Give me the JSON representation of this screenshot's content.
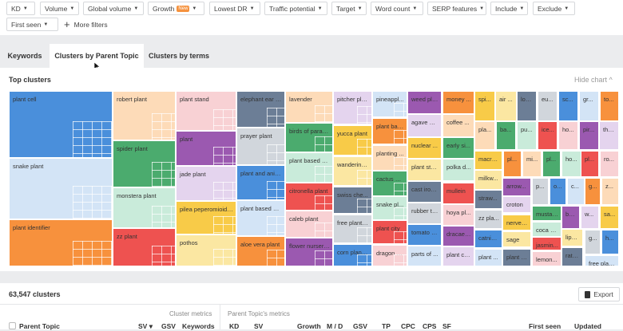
{
  "filters": {
    "row1": [
      "KD",
      "Volume",
      "Global volume",
      "Growth",
      "Lowest DR",
      "Traffic potential",
      "Target",
      "Word count",
      "SERP features",
      "Include",
      "Exclude"
    ],
    "growth_badge": "New",
    "row2": [
      "First seen"
    ],
    "more_filters": "More filters"
  },
  "tabs": [
    {
      "label": "Keywords",
      "active": false
    },
    {
      "label": "Clusters by Parent Topic",
      "active": true
    },
    {
      "label": "Clusters by terms",
      "active": false
    }
  ],
  "top_clusters": {
    "title": "Top clusters",
    "hide_chart": "Hide chart",
    "colors": {
      "blue": "#4a8fdb",
      "lightblue": "#d3e4f6",
      "orange": "#f7913d",
      "peach": "#fddbb8",
      "green": "#4bab6e",
      "mint": "#c9ebda",
      "red": "#ee5250",
      "pink": "#f8d1d4",
      "purple": "#9b59b0",
      "lavender": "#e4d4ee",
      "yellow": "#f8cb48",
      "lightyellow": "#fbe7a2",
      "slate": "#6c7e96",
      "gray": "#d1d6dc"
    },
    "clusters": [
      {
        "label": "plant cell",
        "color": "blue"
      },
      {
        "label": "snake plant",
        "color": "lightblue"
      },
      {
        "label": "plant identifier",
        "color": "orange"
      },
      {
        "label": "robert plant",
        "color": "peach"
      },
      {
        "label": "spider plant",
        "color": "green"
      },
      {
        "label": "monstera plant",
        "color": "mint"
      },
      {
        "label": "zz plant",
        "color": "red"
      },
      {
        "label": "plant stand",
        "color": "pink"
      },
      {
        "label": "plant",
        "color": "purple"
      },
      {
        "label": "jade plant",
        "color": "lavender"
      },
      {
        "label": "pilea peperomioides",
        "color": "yellow"
      },
      {
        "label": "pothos",
        "color": "lightyellow"
      },
      {
        "label": "elephant ear pl...",
        "color": "slate"
      },
      {
        "label": "prayer plant",
        "color": "gray"
      },
      {
        "label": "plant and anim...",
        "color": "blue"
      },
      {
        "label": "plant based diet",
        "color": "lightblue"
      },
      {
        "label": "aloe vera plant",
        "color": "orange"
      },
      {
        "label": "lavender",
        "color": "peach"
      },
      {
        "label": "birds of paradise",
        "color": "green"
      },
      {
        "label": "plant based pr...",
        "color": "mint"
      },
      {
        "label": "citronella plant",
        "color": "red"
      },
      {
        "label": "caleb plant",
        "color": "pink"
      },
      {
        "label": "flower nursery ...",
        "color": "purple"
      },
      {
        "label": "pitcher plant",
        "color": "lavender"
      },
      {
        "label": "yucca plant",
        "color": "yellow"
      },
      {
        "label": "wandering...",
        "color": "lightyellow"
      },
      {
        "label": "swiss che...",
        "color": "slate"
      },
      {
        "label": "free plant i...",
        "color": "gray"
      },
      {
        "label": "corn plant ...",
        "color": "blue"
      },
      {
        "label": "pineappl...",
        "color": "lightblue"
      },
      {
        "label": "plant bas...",
        "color": "orange"
      },
      {
        "label": "planting ...",
        "color": "peach"
      },
      {
        "label": "cactus pl...",
        "color": "green"
      },
      {
        "label": "snake pl...",
        "color": "mint"
      },
      {
        "label": "plant city",
        "color": "red"
      },
      {
        "label": "dragon fr...",
        "color": "pink"
      },
      {
        "label": "weed plant",
        "color": "purple"
      },
      {
        "label": "agave pl...",
        "color": "lavender"
      },
      {
        "label": "nuclear ...",
        "color": "yellow"
      },
      {
        "label": "plant sta...",
        "color": "lightyellow"
      },
      {
        "label": "cast iron...",
        "color": "slate"
      },
      {
        "label": "rubber tr...",
        "color": "gray"
      },
      {
        "label": "tomato p...",
        "color": "blue"
      },
      {
        "label": "parts of ...",
        "color": "lightblue"
      },
      {
        "label": "money ...",
        "color": "orange"
      },
      {
        "label": "coffee ...",
        "color": "peach"
      },
      {
        "label": "early si...",
        "color": "green"
      },
      {
        "label": "polka d...",
        "color": "mint"
      },
      {
        "label": "mullein",
        "color": "red"
      },
      {
        "label": "hoya pl...",
        "color": "pink"
      },
      {
        "label": "dracaena",
        "color": "purple"
      },
      {
        "label": "plant cells",
        "color": "lavender"
      },
      {
        "label": "spi...",
        "color": "yellow"
      },
      {
        "label": "air ...",
        "color": "lightyellow"
      },
      {
        "label": "loo...",
        "color": "slate"
      },
      {
        "label": "eu...",
        "color": "gray"
      },
      {
        "label": "sc...",
        "color": "blue"
      },
      {
        "label": "gr...",
        "color": "lightblue"
      },
      {
        "label": "to...",
        "color": "orange"
      },
      {
        "label": "pla...",
        "color": "peach"
      },
      {
        "label": "ba...",
        "color": "green"
      },
      {
        "label": "pu...",
        "color": "mint"
      },
      {
        "label": "ice...",
        "color": "red"
      },
      {
        "label": "ho...",
        "color": "pink"
      },
      {
        "label": "pir...",
        "color": "purple"
      },
      {
        "label": "the...",
        "color": "lavender"
      },
      {
        "label": "macra...",
        "color": "yellow"
      },
      {
        "label": "pl...",
        "color": "orange"
      },
      {
        "label": "mi...",
        "color": "peach"
      },
      {
        "label": "pl...",
        "color": "green"
      },
      {
        "label": "ho...",
        "color": "mint"
      },
      {
        "label": "pl...",
        "color": "red"
      },
      {
        "label": "ro...",
        "color": "pink"
      },
      {
        "label": "milkw...",
        "color": "lightyellow"
      },
      {
        "label": "arrow...",
        "color": "purple"
      },
      {
        "label": "croton",
        "color": "lavender"
      },
      {
        "label": "p...",
        "color": "gray"
      },
      {
        "label": "o...",
        "color": "blue"
      },
      {
        "label": "c...",
        "color": "lightblue"
      },
      {
        "label": "g...",
        "color": "orange"
      },
      {
        "label": "z...",
        "color": "peach"
      },
      {
        "label": "straw...",
        "color": "slate"
      },
      {
        "label": "zz pla...",
        "color": "gray"
      },
      {
        "label": "catnip...",
        "color": "blue"
      },
      {
        "label": "plant ...",
        "color": "lightblue"
      },
      {
        "label": "nerve ...",
        "color": "yellow"
      },
      {
        "label": "sage",
        "color": "lightyellow"
      },
      {
        "label": "plant li...",
        "color": "slate"
      },
      {
        "label": "mustar...",
        "color": "green"
      },
      {
        "label": "be...",
        "color": "purple"
      },
      {
        "label": "w...",
        "color": "lavender"
      },
      {
        "label": "sa...",
        "color": "yellow"
      },
      {
        "label": "coca p...",
        "color": "mint"
      },
      {
        "label": "jasmin...",
        "color": "red"
      },
      {
        "label": "lemon...",
        "color": "pink"
      },
      {
        "label": "lipst...",
        "color": "lightyellow"
      },
      {
        "label": "ratti...",
        "color": "slate"
      },
      {
        "label": "g...",
        "color": "gray"
      },
      {
        "label": "h...",
        "color": "blue"
      },
      {
        "label": "free plan...",
        "color": "lightblue"
      }
    ]
  },
  "results": {
    "count": "63,547 clusters",
    "export": "Export",
    "group_cluster": "Cluster metrics",
    "group_parent": "Parent Topic's metrics",
    "columns": [
      "Parent Topic",
      "SV ▾",
      "GSV",
      "Keywords",
      "KD",
      "SV",
      "Growth",
      "M / D",
      "GSV",
      "TP",
      "CPC",
      "CPS",
      "SF",
      "First seen",
      "Updated"
    ]
  }
}
